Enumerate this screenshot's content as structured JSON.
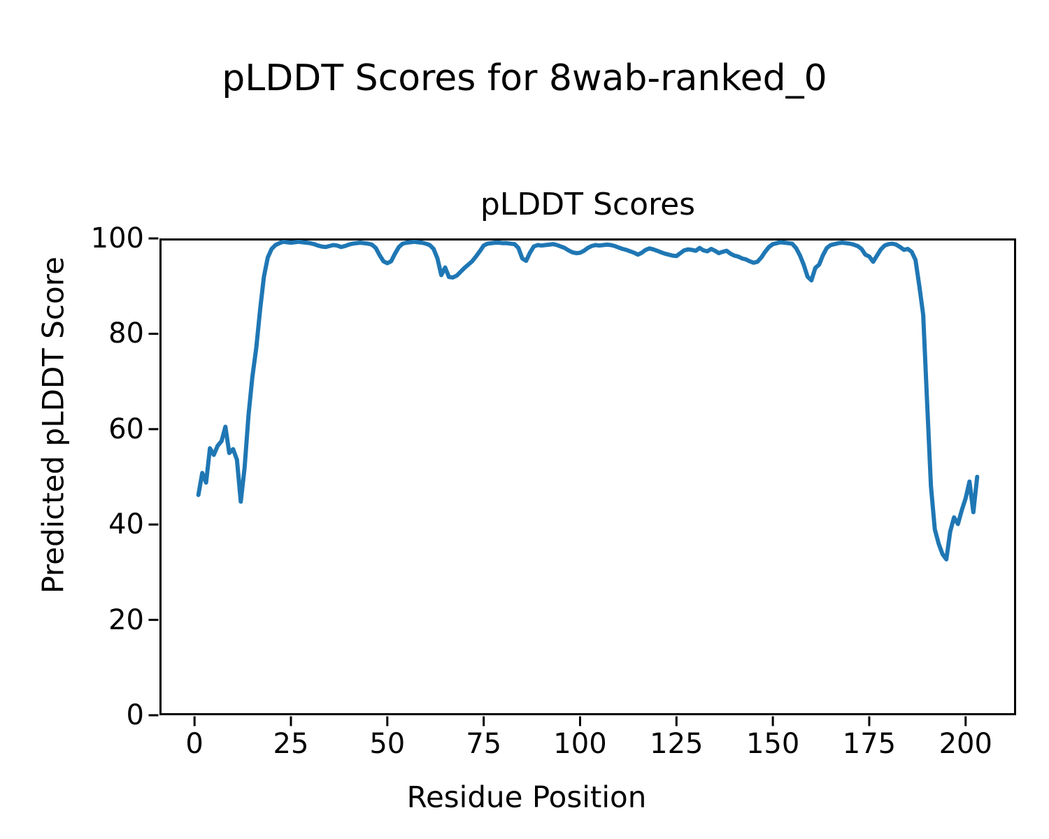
{
  "figure": {
    "suptitle": "pLDDT Scores for 8wab-ranked_0",
    "background": "#ffffff",
    "axis_color": "#000000"
  },
  "chart_data": {
    "type": "line",
    "title": "pLDDT Scores",
    "xlabel": "Residue Position",
    "ylabel": "Predicted pLDDT Score",
    "x_ticks": [
      0,
      25,
      50,
      75,
      100,
      125,
      150,
      175,
      200
    ],
    "y_ticks": [
      0,
      20,
      40,
      60,
      80,
      100
    ],
    "xlim": [
      -9.1,
      213.1
    ],
    "ylim": [
      0,
      100
    ],
    "grid": false,
    "legend": "none",
    "line_color": "#1f77b4",
    "series": [
      {
        "name": "pLDDT",
        "x_start": 1,
        "x_step": 1,
        "values": [
          46.2,
          50.8,
          48.8,
          56.0,
          54.6,
          56.5,
          57.5,
          60.5,
          55.0,
          55.8,
          53.6,
          44.8,
          52.0,
          63.0,
          71.0,
          77.0,
          85.0,
          92.0,
          96.0,
          97.8,
          98.6,
          99.0,
          99.3,
          99.2,
          99.1,
          99.2,
          99.3,
          99.2,
          99.1,
          99.0,
          98.8,
          98.5,
          98.3,
          98.2,
          98.4,
          98.6,
          98.5,
          98.2,
          98.4,
          98.7,
          98.9,
          99.0,
          99.1,
          99.0,
          98.9,
          98.7,
          98.0,
          96.5,
          95.2,
          94.8,
          95.2,
          96.8,
          98.2,
          98.9,
          99.1,
          99.2,
          99.3,
          99.2,
          99.1,
          98.9,
          98.6,
          97.8,
          95.8,
          92.3,
          93.9,
          91.9,
          91.8,
          92.2,
          93.0,
          93.8,
          94.5,
          95.2,
          96.2,
          97.3,
          98.5,
          98.9,
          99.0,
          99.1,
          99.1,
          99.0,
          99.0,
          98.9,
          98.8,
          98.0,
          95.8,
          95.3,
          97.0,
          98.3,
          98.6,
          98.5,
          98.6,
          98.7,
          98.8,
          98.6,
          98.3,
          98.0,
          97.5,
          97.1,
          96.9,
          97.0,
          97.4,
          98.0,
          98.4,
          98.6,
          98.5,
          98.6,
          98.7,
          98.6,
          98.4,
          98.1,
          97.8,
          97.6,
          97.3,
          97.0,
          96.6,
          97.0,
          97.6,
          97.9,
          97.7,
          97.4,
          97.1,
          96.8,
          96.6,
          96.4,
          96.3,
          96.9,
          97.5,
          97.7,
          97.6,
          97.4,
          98.0,
          97.5,
          97.3,
          97.8,
          97.4,
          96.9,
          97.2,
          97.4,
          96.8,
          96.4,
          96.2,
          95.8,
          95.6,
          95.2,
          94.9,
          95.1,
          96.0,
          97.2,
          98.2,
          98.8,
          99.0,
          99.2,
          99.1,
          99.0,
          98.9,
          98.0,
          96.5,
          94.5,
          92.0,
          91.2,
          93.8,
          94.5,
          96.5,
          98.0,
          98.6,
          98.8,
          99.0,
          99.1,
          99.0,
          98.9,
          98.7,
          98.4,
          97.8,
          96.6,
          96.2,
          95.1,
          96.4,
          97.7,
          98.5,
          98.8,
          98.9,
          98.7,
          98.2,
          97.6,
          97.8,
          97.2,
          95.5,
          90.0,
          84.0,
          66.0,
          48.0,
          39.0,
          36.0,
          33.8,
          32.7,
          38.5,
          41.5,
          40.1,
          43.0,
          45.5,
          49.0,
          42.6,
          50.0
        ]
      }
    ]
  }
}
